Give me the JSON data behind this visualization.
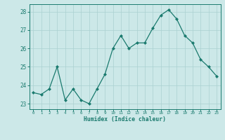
{
  "x": [
    0,
    1,
    2,
    3,
    4,
    5,
    6,
    7,
    8,
    9,
    10,
    11,
    12,
    13,
    14,
    15,
    16,
    17,
    18,
    19,
    20,
    21,
    22,
    23
  ],
  "y": [
    23.6,
    23.5,
    23.8,
    25.0,
    23.2,
    23.8,
    23.2,
    23.0,
    23.8,
    24.6,
    26.0,
    26.7,
    26.0,
    26.3,
    26.3,
    27.1,
    27.8,
    28.1,
    27.6,
    26.7,
    26.3,
    25.4,
    25.0,
    24.5
  ],
  "xlabel": "Humidex (Indice chaleur)",
  "xlim": [
    -0.5,
    23.5
  ],
  "ylim": [
    22.7,
    28.4
  ],
  "yticks": [
    23,
    24,
    25,
    26,
    27,
    28
  ],
  "xticks": [
    0,
    1,
    2,
    3,
    4,
    5,
    6,
    7,
    8,
    9,
    10,
    11,
    12,
    13,
    14,
    15,
    16,
    17,
    18,
    19,
    20,
    21,
    22,
    23
  ],
  "line_color": "#1a7a6e",
  "marker_color": "#1a7a6e",
  "bg_color": "#cce8e8",
  "grid_color": "#aad0d0",
  "tick_color": "#1a7a6e",
  "label_color": "#1a7a6e",
  "spine_color": "#1a7a6e"
}
